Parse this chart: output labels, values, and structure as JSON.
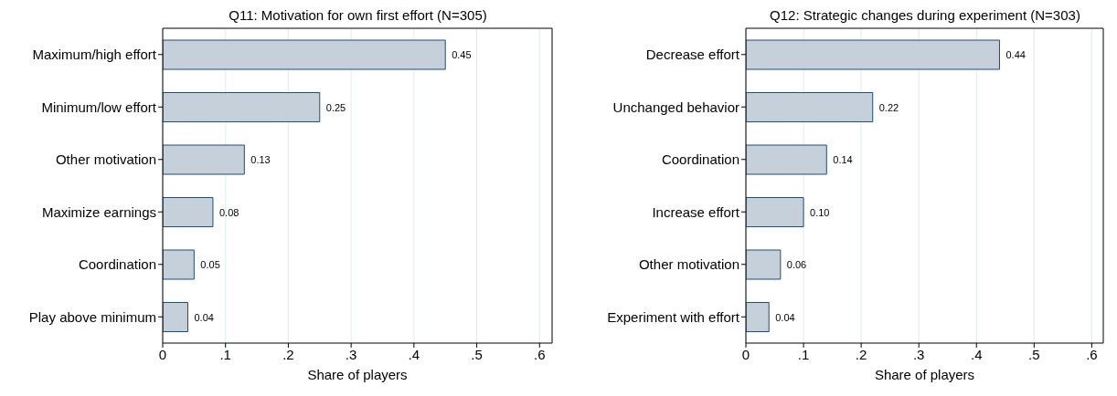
{
  "chart_data": [
    {
      "type": "bar",
      "orientation": "horizontal",
      "title": "Q11: Motivation for own first effort (N=305)",
      "xlabel": "Share of players",
      "categories": [
        "Maximum/high effort",
        "Minimum/low effort",
        "Other motivation",
        "Maximize earnings",
        "Coordination",
        "Play above minimum"
      ],
      "values": [
        0.45,
        0.25,
        0.13,
        0.08,
        0.05,
        0.04
      ],
      "value_labels": [
        "0.45",
        "0.25",
        "0.13",
        "0.08",
        "0.05",
        "0.04"
      ],
      "color": "#c6d0db",
      "xlim": [
        0,
        0.62
      ],
      "xticks": [
        0,
        {
          "value": 0.1,
          "label": ".1"
        },
        {
          "value": 0.2,
          "label": ".2"
        },
        {
          "value": 0.3,
          "label": ".3"
        },
        {
          "value": 0.4,
          "label": ".4"
        },
        {
          "value": 0.5,
          "label": ".5"
        },
        {
          "value": 0.6,
          "label": ".6"
        }
      ],
      "grid": "x",
      "legend": false
    },
    {
      "type": "bar",
      "orientation": "horizontal",
      "title": "Q12: Strategic changes during experiment (N=303)",
      "xlabel": "Share of players",
      "categories": [
        "Decrease effort",
        "Unchanged behavior",
        "Coordination",
        "Increase effort",
        "Other motivation",
        "Experiment with effort"
      ],
      "values": [
        0.44,
        0.22,
        0.14,
        0.1,
        0.06,
        0.04
      ],
      "value_labels": [
        "0.44",
        "0.22",
        "0.14",
        "0.10",
        "0.06",
        "0.04"
      ],
      "color": "#c6d0db",
      "xlim": [
        0,
        0.62
      ],
      "xticks": [
        0,
        {
          "value": 0.1,
          "label": ".1"
        },
        {
          "value": 0.2,
          "label": ".2"
        },
        {
          "value": 0.3,
          "label": ".3"
        },
        {
          "value": 0.4,
          "label": ".4"
        },
        {
          "value": 0.5,
          "label": ".5"
        },
        {
          "value": 0.6,
          "label": ".6"
        }
      ],
      "grid": "x",
      "legend": false
    }
  ]
}
